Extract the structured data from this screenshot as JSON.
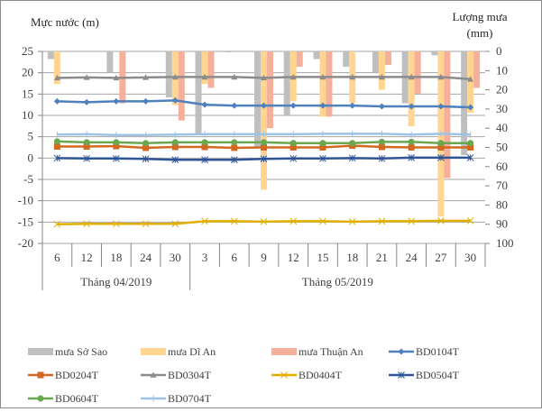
{
  "chart_data": {
    "type": "bar+line",
    "title": "",
    "ylabel_left": "Mực nước (m)",
    "ylabel_right_line1": "Lượng mưa",
    "ylabel_right_line2": "(mm)",
    "ylim_left": [
      -20,
      25
    ],
    "yticks_left": [
      25,
      20,
      15,
      10,
      5,
      0,
      -5,
      -10,
      -15,
      -20
    ],
    "ylim_right": [
      0,
      100
    ],
    "yticks_right": [
      0,
      10,
      20,
      30,
      40,
      50,
      60,
      70,
      80,
      90,
      100
    ],
    "right_axis_inverted": true,
    "grid": true,
    "categories": [
      "6",
      "12",
      "18",
      "24",
      "30",
      "3",
      "6",
      "9",
      "12",
      "15",
      "18",
      "21",
      "24",
      "27",
      "30"
    ],
    "groups": [
      {
        "label": "Tháng 04/2019",
        "start": 0,
        "count": 5
      },
      {
        "label": "Tháng 05/2019",
        "start": 5,
        "count": 10
      }
    ],
    "bar_series": [
      {
        "name": "mưa Sở Sao",
        "color": "#bfbfbf",
        "values": [
          4,
          0,
          11,
          0,
          24,
          43,
          0.5,
          50,
          33,
          4,
          8,
          11,
          27,
          2,
          54
        ]
      },
      {
        "name": "mưa Dĩ An",
        "color": "#ffd591",
        "values": [
          17,
          0,
          0,
          0,
          28,
          17,
          0,
          72,
          26,
          34,
          27,
          20,
          39,
          86,
          32
        ]
      },
      {
        "name": "mưa Thuận An",
        "color": "#f4b09a",
        "values": [
          0,
          0,
          27,
          0,
          36,
          19,
          0,
          40,
          8,
          34,
          0,
          7,
          22,
          66,
          19
        ]
      }
    ],
    "line_series": [
      {
        "name": "BD0104T",
        "color": "#4f81bd",
        "marker": "diamond",
        "values": [
          13.3,
          13.1,
          13.3,
          13.3,
          13.5,
          12.5,
          12.3,
          12.3,
          12.3,
          12.3,
          12.3,
          12.1,
          12.1,
          12.1,
          11.9
        ]
      },
      {
        "name": "BD0204T",
        "color": "#d2691e",
        "marker": "square",
        "values": [
          2.7,
          2.7,
          2.8,
          2.4,
          2.6,
          2.6,
          2.4,
          2.5,
          2.5,
          2.5,
          2.9,
          2.6,
          2.5,
          2.5,
          2.5
        ]
      },
      {
        "name": "BD0304T",
        "color": "#8c8c8c",
        "marker": "triangle",
        "values": [
          18.8,
          18.9,
          18.8,
          18.9,
          19.0,
          19.0,
          19.0,
          18.8,
          19.0,
          19.0,
          19.0,
          19.0,
          19.0,
          19.0,
          18.5
        ]
      },
      {
        "name": "BD0404T",
        "color": "#e0b000",
        "marker": "x",
        "values": [
          -15.5,
          -15.4,
          -15.4,
          -15.4,
          -15.4,
          -14.8,
          -14.8,
          -14.9,
          -14.8,
          -14.8,
          -14.9,
          -14.8,
          -14.8,
          -14.7,
          -14.7
        ]
      },
      {
        "name": "BD0504T",
        "color": "#2f5597",
        "marker": "star",
        "values": [
          0.0,
          -0.1,
          -0.1,
          -0.2,
          -0.4,
          -0.4,
          -0.4,
          -0.2,
          -0.1,
          -0.1,
          0.0,
          -0.1,
          0.1,
          0.1,
          0.1
        ]
      },
      {
        "name": "BD0604T",
        "color": "#6aa84f",
        "marker": "circle",
        "values": [
          3.9,
          3.7,
          3.7,
          3.5,
          3.7,
          3.7,
          3.7,
          3.7,
          3.5,
          3.5,
          3.5,
          3.8,
          3.8,
          3.5,
          3.5
        ]
      },
      {
        "name": "BD0704T",
        "color": "#9dc3e6",
        "marker": "plus",
        "values": [
          5.5,
          5.6,
          5.4,
          5.4,
          5.5,
          5.6,
          5.6,
          5.6,
          5.6,
          5.7,
          5.7,
          5.7,
          5.5,
          5.7,
          5.5
        ]
      }
    ],
    "legend": {
      "placement": "bottom",
      "entries": [
        "mưa Sở Sao",
        "mưa Dĩ An",
        "mưa Thuận An",
        "BD0104T",
        "BD0204T",
        "BD0304T",
        "BD0404T",
        "BD0504T",
        "BD0604T",
        "BD0704T"
      ]
    }
  }
}
